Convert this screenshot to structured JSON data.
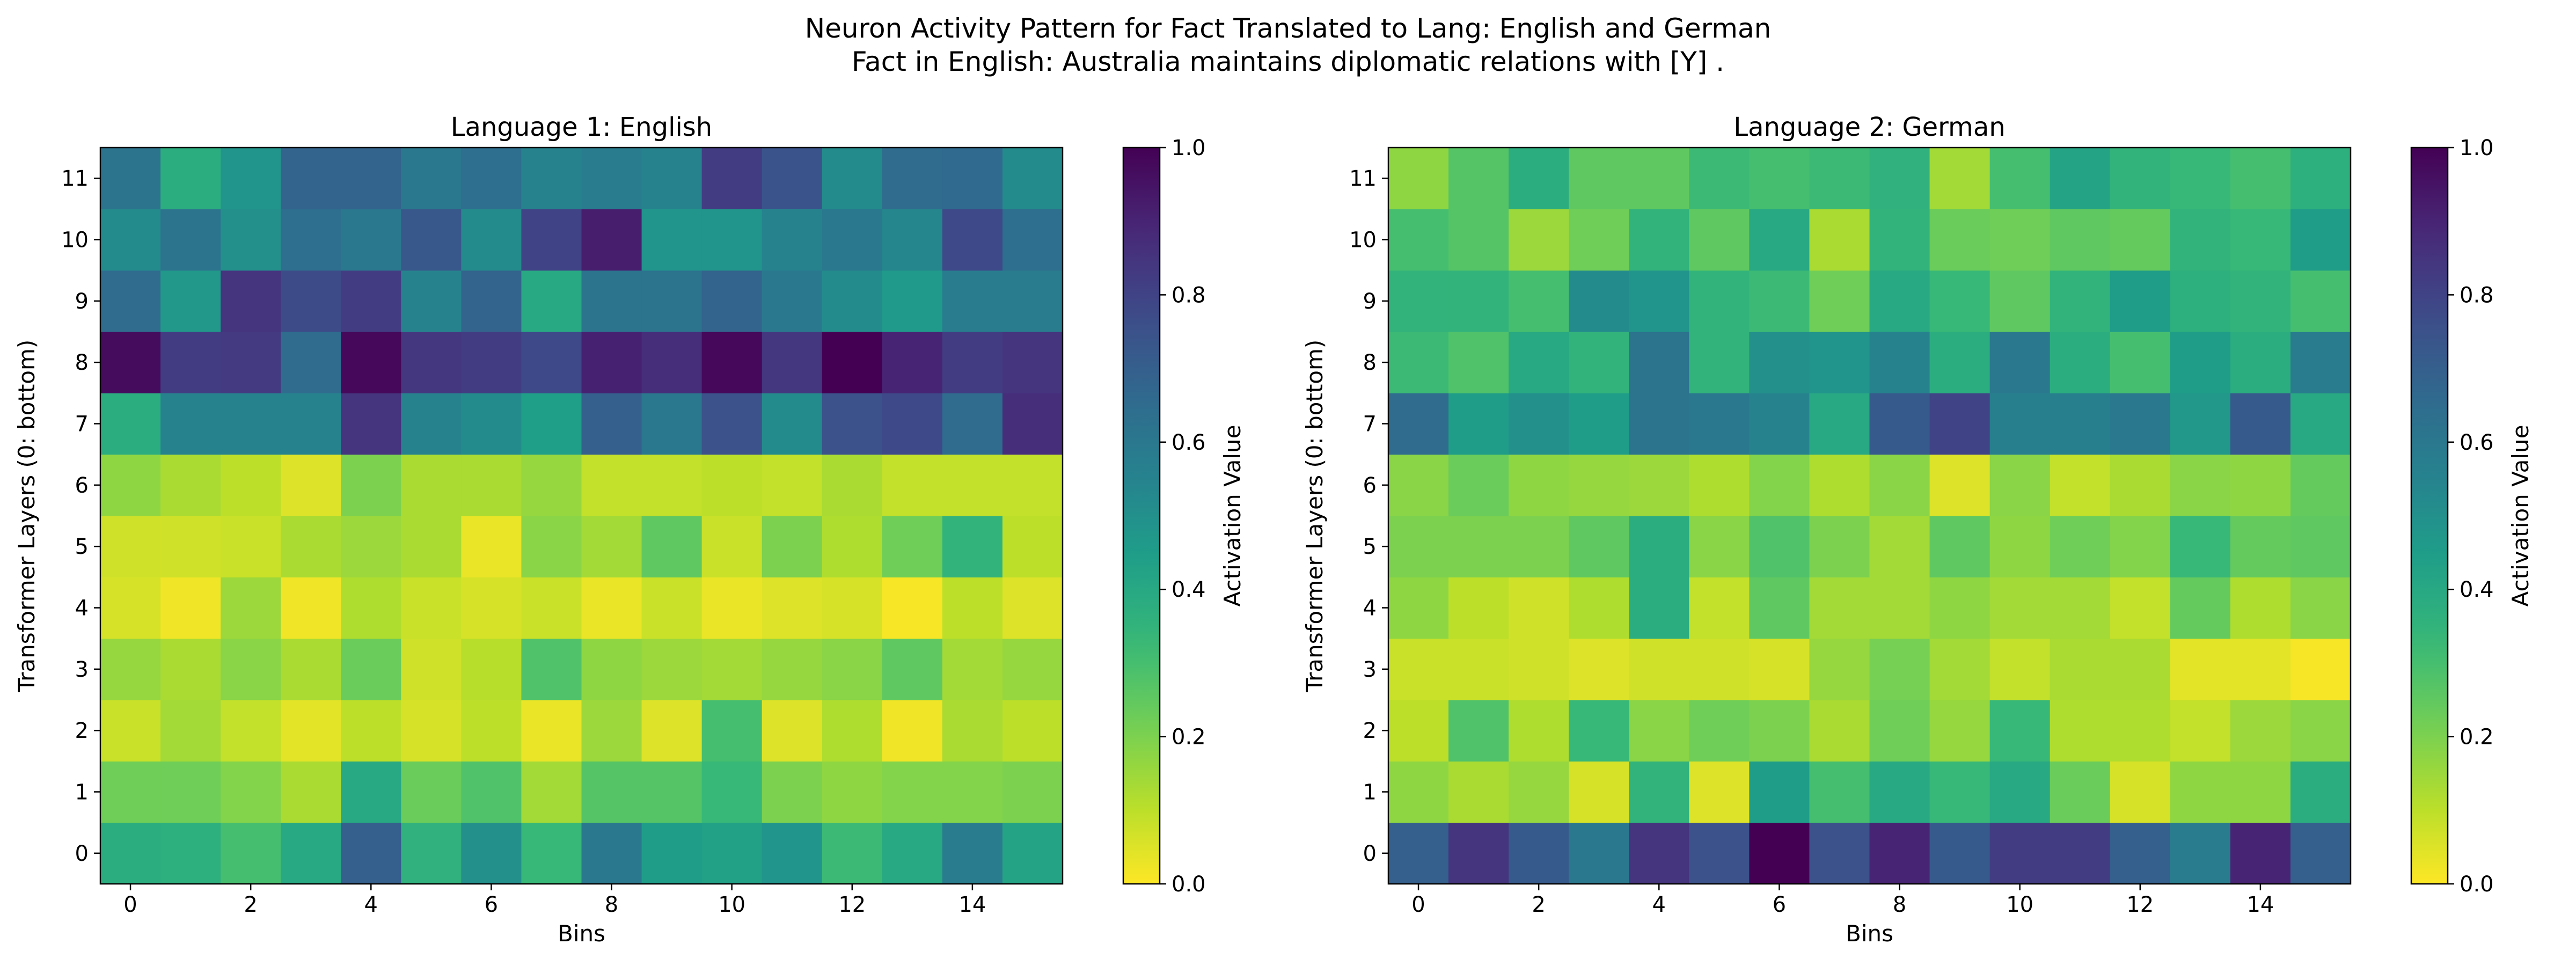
{
  "figure": {
    "title_line1": "Neuron Activity Pattern for Fact Translated to Lang: English and German",
    "title_line2": "Fact in English: Australia maintains diplomatic relations with [Y] ."
  },
  "chart_data": [
    {
      "type": "heatmap",
      "title": "Language 1: English",
      "xlabel": "Bins",
      "ylabel": "Transformer Layers (0: bottom)",
      "colorbar_label": "Activation Value",
      "colormap": "viridis_r",
      "vmin": 0.0,
      "vmax": 1.0,
      "x_ticks": [
        0,
        2,
        4,
        6,
        8,
        10,
        12,
        14
      ],
      "y_ticks": [
        0,
        1,
        2,
        3,
        4,
        5,
        6,
        7,
        8,
        9,
        10,
        11
      ],
      "colorbar_ticks": [
        "0.0",
        "0.2",
        "0.4",
        "0.6",
        "0.8",
        "1.0"
      ],
      "bins": 16,
      "layers": 12,
      "values": [
        [
          0.38,
          0.37,
          0.3,
          0.4,
          0.7,
          0.36,
          0.5,
          0.33,
          0.6,
          0.45,
          0.43,
          0.48,
          0.32,
          0.4,
          0.58,
          0.42
        ],
        [
          0.22,
          0.22,
          0.19,
          0.13,
          0.4,
          0.23,
          0.28,
          0.14,
          0.27,
          0.27,
          0.33,
          0.2,
          0.17,
          0.19,
          0.19,
          0.2
        ],
        [
          0.08,
          0.14,
          0.09,
          0.04,
          0.1,
          0.06,
          0.1,
          0.03,
          0.15,
          0.05,
          0.3,
          0.05,
          0.12,
          0.02,
          0.13,
          0.1
        ],
        [
          0.16,
          0.13,
          0.18,
          0.13,
          0.23,
          0.07,
          0.11,
          0.28,
          0.17,
          0.15,
          0.14,
          0.16,
          0.18,
          0.25,
          0.14,
          0.16
        ],
        [
          0.06,
          0.02,
          0.15,
          0.02,
          0.12,
          0.08,
          0.06,
          0.08,
          0.03,
          0.08,
          0.03,
          0.05,
          0.06,
          0.01,
          0.1,
          0.05
        ],
        [
          0.07,
          0.07,
          0.08,
          0.13,
          0.15,
          0.13,
          0.03,
          0.18,
          0.14,
          0.25,
          0.08,
          0.2,
          0.12,
          0.22,
          0.35,
          0.1
        ],
        [
          0.17,
          0.13,
          0.1,
          0.05,
          0.2,
          0.13,
          0.13,
          0.16,
          0.09,
          0.09,
          0.1,
          0.09,
          0.13,
          0.09,
          0.09,
          0.09
        ],
        [
          0.38,
          0.55,
          0.55,
          0.55,
          0.85,
          0.55,
          0.52,
          0.44,
          0.7,
          0.6,
          0.75,
          0.52,
          0.75,
          0.78,
          0.65,
          0.87
        ],
        [
          0.97,
          0.82,
          0.83,
          0.65,
          0.98,
          0.84,
          0.82,
          0.78,
          0.91,
          0.87,
          0.98,
          0.84,
          1.0,
          0.9,
          0.82,
          0.85
        ],
        [
          0.65,
          0.47,
          0.85,
          0.77,
          0.82,
          0.55,
          0.68,
          0.4,
          0.62,
          0.62,
          0.68,
          0.6,
          0.52,
          0.46,
          0.58,
          0.58
        ],
        [
          0.52,
          0.62,
          0.5,
          0.64,
          0.6,
          0.73,
          0.52,
          0.8,
          0.92,
          0.48,
          0.48,
          0.55,
          0.6,
          0.54,
          0.78,
          0.64
        ],
        [
          0.62,
          0.38,
          0.48,
          0.68,
          0.68,
          0.6,
          0.64,
          0.55,
          0.58,
          0.55,
          0.82,
          0.74,
          0.52,
          0.65,
          0.66,
          0.52
        ]
      ]
    },
    {
      "type": "heatmap",
      "title": "Language 2: German",
      "xlabel": "Bins",
      "ylabel": "Transformer Layers (0: bottom)",
      "colorbar_label": "Activation Value",
      "colormap": "viridis_r",
      "vmin": 0.0,
      "vmax": 1.0,
      "x_ticks": [
        0,
        2,
        4,
        6,
        8,
        10,
        12,
        14
      ],
      "y_ticks": [
        0,
        1,
        2,
        3,
        4,
        5,
        6,
        7,
        8,
        9,
        10,
        11
      ],
      "colorbar_ticks": [
        "0.0",
        "0.2",
        "0.4",
        "0.6",
        "0.8",
        "1.0"
      ],
      "bins": 16,
      "layers": 12,
      "values": [
        [
          0.7,
          0.85,
          0.72,
          0.6,
          0.85,
          0.75,
          1.0,
          0.75,
          0.9,
          0.72,
          0.82,
          0.82,
          0.7,
          0.58,
          0.9,
          0.7
        ],
        [
          0.17,
          0.13,
          0.16,
          0.06,
          0.35,
          0.05,
          0.45,
          0.3,
          0.4,
          0.33,
          0.4,
          0.23,
          0.06,
          0.17,
          0.17,
          0.38
        ],
        [
          0.1,
          0.28,
          0.12,
          0.33,
          0.18,
          0.22,
          0.2,
          0.13,
          0.22,
          0.16,
          0.33,
          0.12,
          0.12,
          0.09,
          0.15,
          0.18
        ],
        [
          0.08,
          0.08,
          0.07,
          0.05,
          0.07,
          0.07,
          0.06,
          0.16,
          0.21,
          0.14,
          0.09,
          0.13,
          0.13,
          0.04,
          0.04,
          0.01
        ],
        [
          0.17,
          0.1,
          0.07,
          0.12,
          0.38,
          0.09,
          0.25,
          0.14,
          0.14,
          0.17,
          0.14,
          0.14,
          0.09,
          0.24,
          0.12,
          0.18
        ],
        [
          0.2,
          0.2,
          0.2,
          0.25,
          0.38,
          0.18,
          0.28,
          0.2,
          0.14,
          0.25,
          0.17,
          0.22,
          0.19,
          0.33,
          0.24,
          0.25
        ],
        [
          0.18,
          0.23,
          0.17,
          0.16,
          0.15,
          0.12,
          0.19,
          0.12,
          0.18,
          0.05,
          0.18,
          0.09,
          0.13,
          0.18,
          0.17,
          0.24
        ],
        [
          0.65,
          0.45,
          0.5,
          0.45,
          0.62,
          0.6,
          0.55,
          0.4,
          0.72,
          0.8,
          0.57,
          0.57,
          0.6,
          0.47,
          0.72,
          0.4
        ],
        [
          0.32,
          0.28,
          0.4,
          0.35,
          0.62,
          0.35,
          0.5,
          0.48,
          0.55,
          0.38,
          0.6,
          0.38,
          0.3,
          0.45,
          0.38,
          0.58
        ],
        [
          0.35,
          0.35,
          0.3,
          0.52,
          0.48,
          0.35,
          0.32,
          0.22,
          0.4,
          0.33,
          0.25,
          0.35,
          0.45,
          0.37,
          0.35,
          0.3
        ],
        [
          0.3,
          0.27,
          0.15,
          0.22,
          0.35,
          0.25,
          0.4,
          0.13,
          0.35,
          0.23,
          0.22,
          0.25,
          0.24,
          0.35,
          0.33,
          0.45
        ],
        [
          0.17,
          0.27,
          0.38,
          0.25,
          0.25,
          0.32,
          0.3,
          0.32,
          0.36,
          0.14,
          0.3,
          0.42,
          0.35,
          0.33,
          0.3,
          0.37
        ]
      ]
    }
  ]
}
